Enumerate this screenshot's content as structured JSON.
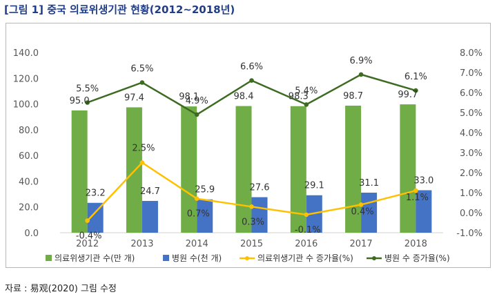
{
  "title": {
    "tag": "[그림 1]",
    "text": "중국 의료위생기관 현황(2012~2018년)"
  },
  "source": "자료 : 易观(2020) 그림 수정",
  "colors": {
    "bar_inst": "#70ad47",
    "bar_hosp": "#4472c4",
    "line_inst": "#ffc000",
    "line_hosp": "#3d6b21"
  },
  "chart_data": {
    "type": "bar",
    "categories": [
      "2012",
      "2013",
      "2014",
      "2015",
      "2016",
      "2017",
      "2018"
    ],
    "series": [
      {
        "name": "의료위생기관 수(만 개)",
        "type": "bar",
        "axis": "left",
        "values": [
          95.0,
          97.4,
          98.1,
          98.4,
          98.3,
          98.7,
          99.7
        ],
        "labels": [
          "95.0",
          "97.4",
          "98.1",
          "98.4",
          "98.3",
          "98.7",
          "99.7"
        ]
      },
      {
        "name": "병원 수(천 개)",
        "type": "bar",
        "axis": "left",
        "values": [
          23.2,
          24.7,
          25.9,
          27.6,
          29.1,
          31.1,
          33.0
        ],
        "labels": [
          "23.2",
          "24.7",
          "25.9",
          "27.6",
          "29.1",
          "31.1",
          "33.0"
        ]
      },
      {
        "name": "의료위생기관 수 증가율(%)",
        "type": "line",
        "axis": "right",
        "values": [
          -0.4,
          2.5,
          0.7,
          0.3,
          -0.1,
          0.4,
          1.1
        ],
        "labels": [
          "-0.4%",
          "2.5%",
          "0.7%",
          "0.3%",
          "-0.1%",
          "0.4%",
          "1.1%"
        ]
      },
      {
        "name": "병원 수 증가율(%)",
        "type": "line",
        "axis": "right",
        "values": [
          5.5,
          6.5,
          4.9,
          6.6,
          5.4,
          6.9,
          6.1
        ],
        "labels": [
          "5.5%",
          "6.5%",
          "4.9%",
          "6.6%",
          "5.4%",
          "6.9%",
          "6.1%"
        ]
      }
    ],
    "y_left": {
      "min": 0,
      "max": 140,
      "ticks": [
        "0.0",
        "20.0",
        "40.0",
        "60.0",
        "80.0",
        "100.0",
        "120.0",
        "140.0"
      ]
    },
    "y_right": {
      "min": -1,
      "max": 8,
      "ticks": [
        "-1.0%",
        "0.0%",
        "1.0%",
        "2.0%",
        "3.0%",
        "4.0%",
        "5.0%",
        "6.0%",
        "7.0%",
        "8.0%"
      ]
    },
    "grid": false,
    "legend": "bottom"
  }
}
